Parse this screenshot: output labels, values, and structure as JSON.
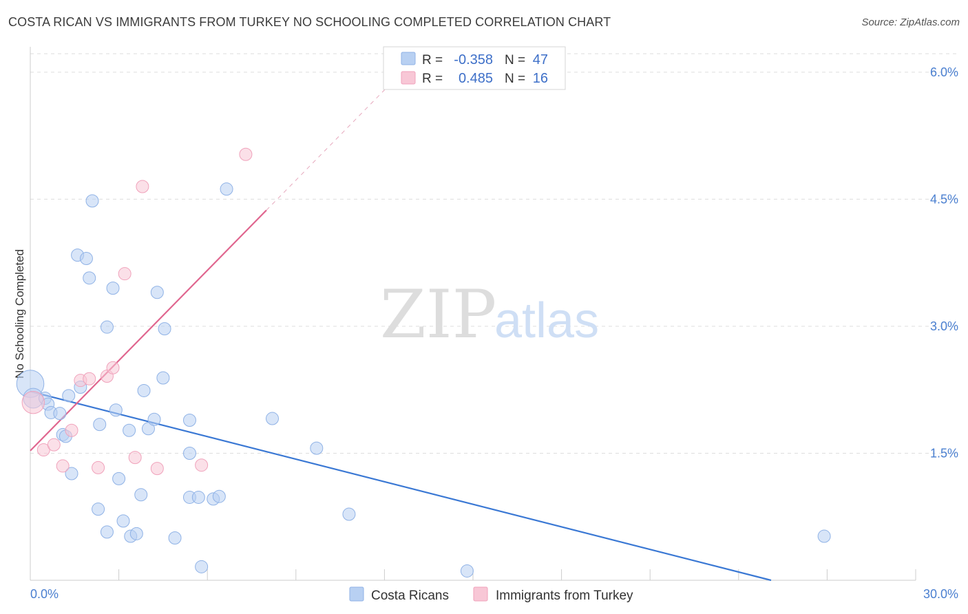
{
  "title": "COSTA RICAN VS IMMIGRANTS FROM TURKEY NO SCHOOLING COMPLETED CORRELATION CHART",
  "source": "Source: ZipAtlas.com",
  "watermark": {
    "zip": "ZIP",
    "atlas": "atlas"
  },
  "colors": {
    "blue_fill": "#b8d0f2",
    "blue_stroke": "#8fb2e6",
    "blue_line": "#3a78d4",
    "pink_fill": "#f8c7d6",
    "pink_stroke": "#f0a2bb",
    "pink_line": "#e0668f",
    "tick_text": "#4a7fd0",
    "grid": "#dddddd"
  },
  "stats": {
    "series": [
      {
        "r_label": "R =",
        "r_value": "-0.358",
        "n_label": "N =",
        "n_value": "47"
      },
      {
        "r_label": "R =",
        "r_value": "0.485",
        "n_label": "N =",
        "n_value": "16"
      }
    ]
  },
  "chart_data": {
    "type": "scatter",
    "title": "COSTA RICAN VS IMMIGRANTS FROM TURKEY NO SCHOOLING COMPLETED CORRELATION CHART",
    "xlabel": "",
    "ylabel": "No Schooling Completed",
    "xlim": [
      0,
      30
    ],
    "ylim": [
      0,
      6.3
    ],
    "x_tick_labels": [
      "0.0%",
      "30.0%"
    ],
    "y_ticks": [
      1.5,
      3.0,
      4.5,
      6.0
    ],
    "y_tick_labels": [
      "1.5%",
      "3.0%",
      "4.5%",
      "6.0%"
    ],
    "grid": true,
    "legend_position": "bottom-center",
    "series": [
      {
        "name": "Costa Ricans",
        "color": "#b8d0f2",
        "points": [
          {
            "x": 0.0,
            "y": 2.32,
            "s": 2.2
          },
          {
            "x": 0.1,
            "y": 2.15,
            "s": 1.6
          },
          {
            "x": 0.5,
            "y": 2.15
          },
          {
            "x": 0.6,
            "y": 2.08
          },
          {
            "x": 0.7,
            "y": 1.98
          },
          {
            "x": 1.0,
            "y": 1.97
          },
          {
            "x": 1.1,
            "y": 1.72
          },
          {
            "x": 1.2,
            "y": 1.7
          },
          {
            "x": 1.3,
            "y": 2.18
          },
          {
            "x": 1.4,
            "y": 1.26
          },
          {
            "x": 1.6,
            "y": 3.84
          },
          {
            "x": 1.7,
            "y": 2.28
          },
          {
            "x": 1.9,
            "y": 3.8
          },
          {
            "x": 2.0,
            "y": 3.57
          },
          {
            "x": 2.1,
            "y": 4.48
          },
          {
            "x": 2.3,
            "y": 0.84
          },
          {
            "x": 2.35,
            "y": 1.84
          },
          {
            "x": 2.6,
            "y": 0.57
          },
          {
            "x": 2.6,
            "y": 2.99
          },
          {
            "x": 2.8,
            "y": 3.45
          },
          {
            "x": 2.9,
            "y": 2.01
          },
          {
            "x": 3.0,
            "y": 1.2
          },
          {
            "x": 3.15,
            "y": 0.7
          },
          {
            "x": 3.35,
            "y": 1.77
          },
          {
            "x": 3.4,
            "y": 0.52
          },
          {
            "x": 3.6,
            "y": 0.55
          },
          {
            "x": 3.75,
            "y": 1.01
          },
          {
            "x": 3.85,
            "y": 2.24
          },
          {
            "x": 4.0,
            "y": 1.79
          },
          {
            "x": 4.2,
            "y": 1.9
          },
          {
            "x": 4.3,
            "y": 3.4
          },
          {
            "x": 4.5,
            "y": 2.39
          },
          {
            "x": 4.55,
            "y": 2.97
          },
          {
            "x": 4.9,
            "y": 0.5
          },
          {
            "x": 5.4,
            "y": 1.89
          },
          {
            "x": 5.4,
            "y": 1.5
          },
          {
            "x": 5.4,
            "y": 0.98
          },
          {
            "x": 5.7,
            "y": 0.98
          },
          {
            "x": 5.8,
            "y": 0.16
          },
          {
            "x": 6.2,
            "y": 0.96
          },
          {
            "x": 6.4,
            "y": 0.99
          },
          {
            "x": 6.65,
            "y": 4.62
          },
          {
            "x": 8.2,
            "y": 1.91
          },
          {
            "x": 9.7,
            "y": 1.56
          },
          {
            "x": 10.8,
            "y": 0.78
          },
          {
            "x": 14.8,
            "y": 0.11
          },
          {
            "x": 26.9,
            "y": 0.52
          }
        ],
        "trend": {
          "x": [
            0,
            25.1
          ],
          "y": [
            2.23,
            0.0
          ],
          "solid_to": 25.1
        }
      },
      {
        "name": "Immigrants from Turkey",
        "color": "#f8c7d6",
        "points": [
          {
            "x": 0.1,
            "y": 2.1,
            "s": 1.8
          },
          {
            "x": 0.45,
            "y": 1.54
          },
          {
            "x": 0.8,
            "y": 1.6
          },
          {
            "x": 1.1,
            "y": 1.35
          },
          {
            "x": 1.4,
            "y": 1.77
          },
          {
            "x": 1.7,
            "y": 2.36
          },
          {
            "x": 2.0,
            "y": 2.38
          },
          {
            "x": 2.3,
            "y": 1.33
          },
          {
            "x": 2.6,
            "y": 2.41
          },
          {
            "x": 2.8,
            "y": 2.51
          },
          {
            "x": 3.2,
            "y": 3.62
          },
          {
            "x": 3.55,
            "y": 1.45
          },
          {
            "x": 3.8,
            "y": 4.65
          },
          {
            "x": 4.3,
            "y": 1.32
          },
          {
            "x": 5.8,
            "y": 1.36
          },
          {
            "x": 7.3,
            "y": 5.03
          }
        ],
        "trend": {
          "x": [
            0,
            14.0
          ],
          "y": [
            1.53,
            6.5
          ],
          "solid_to": 8.0
        }
      }
    ]
  }
}
